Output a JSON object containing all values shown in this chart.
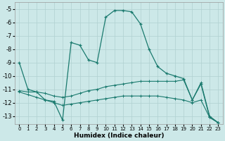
{
  "xlabel": "Humidex (Indice chaleur)",
  "background_color": "#cce8e8",
  "grid_color": "#b0d0d0",
  "line_color": "#1a7a6e",
  "xlim": [
    -0.5,
    23.5
  ],
  "ylim": [
    -13.6,
    -4.5
  ],
  "yticks": [
    -5,
    -6,
    -7,
    -8,
    -9,
    -10,
    -11,
    -12,
    -13
  ],
  "xticks": [
    0,
    1,
    2,
    3,
    4,
    5,
    6,
    7,
    8,
    9,
    10,
    11,
    12,
    13,
    14,
    15,
    16,
    17,
    18,
    19,
    20,
    21,
    22,
    23
  ],
  "series": [
    {
      "x": [
        0,
        1,
        2,
        3,
        4,
        5,
        6,
        7,
        8,
        9,
        10,
        11,
        12,
        13,
        14,
        15,
        16,
        17,
        18,
        19,
        20,
        21,
        22,
        23
      ],
      "y": [
        -9.0,
        -11.0,
        -11.2,
        -11.8,
        -11.9,
        -13.3,
        -7.5,
        -7.7,
        -8.8,
        -9.0,
        -5.6,
        -5.1,
        -5.1,
        -5.2,
        -6.1,
        -8.0,
        -9.3,
        -9.8,
        -10.0,
        -10.2,
        -11.8,
        -10.6,
        -13.1,
        -13.5
      ]
    },
    {
      "x": [
        0,
        1,
        2,
        3,
        4,
        5,
        6,
        7,
        8,
        9,
        10,
        11,
        12,
        13,
        14,
        15,
        16,
        17,
        18,
        19,
        20,
        21,
        22,
        23
      ],
      "y": [
        -11.1,
        -11.2,
        -11.2,
        -11.3,
        -11.5,
        -11.6,
        -11.5,
        -11.3,
        -11.1,
        -11.0,
        -10.8,
        -10.7,
        -10.6,
        -10.5,
        -10.4,
        -10.4,
        -10.4,
        -10.4,
        -10.4,
        -10.3,
        -11.8,
        -10.5,
        -13.0,
        -13.5
      ]
    },
    {
      "x": [
        0,
        1,
        2,
        3,
        4,
        5,
        6,
        7,
        8,
        9,
        10,
        11,
        12,
        13,
        14,
        15,
        16,
        17,
        18,
        19,
        20,
        21,
        22,
        23
      ],
      "y": [
        -11.2,
        -11.4,
        -11.6,
        -11.8,
        -12.0,
        -12.2,
        -12.1,
        -12.0,
        -11.9,
        -11.8,
        -11.7,
        -11.6,
        -11.5,
        -11.5,
        -11.5,
        -11.5,
        -11.5,
        -11.6,
        -11.7,
        -11.8,
        -12.0,
        -11.8,
        -13.1,
        -13.5
      ]
    }
  ]
}
